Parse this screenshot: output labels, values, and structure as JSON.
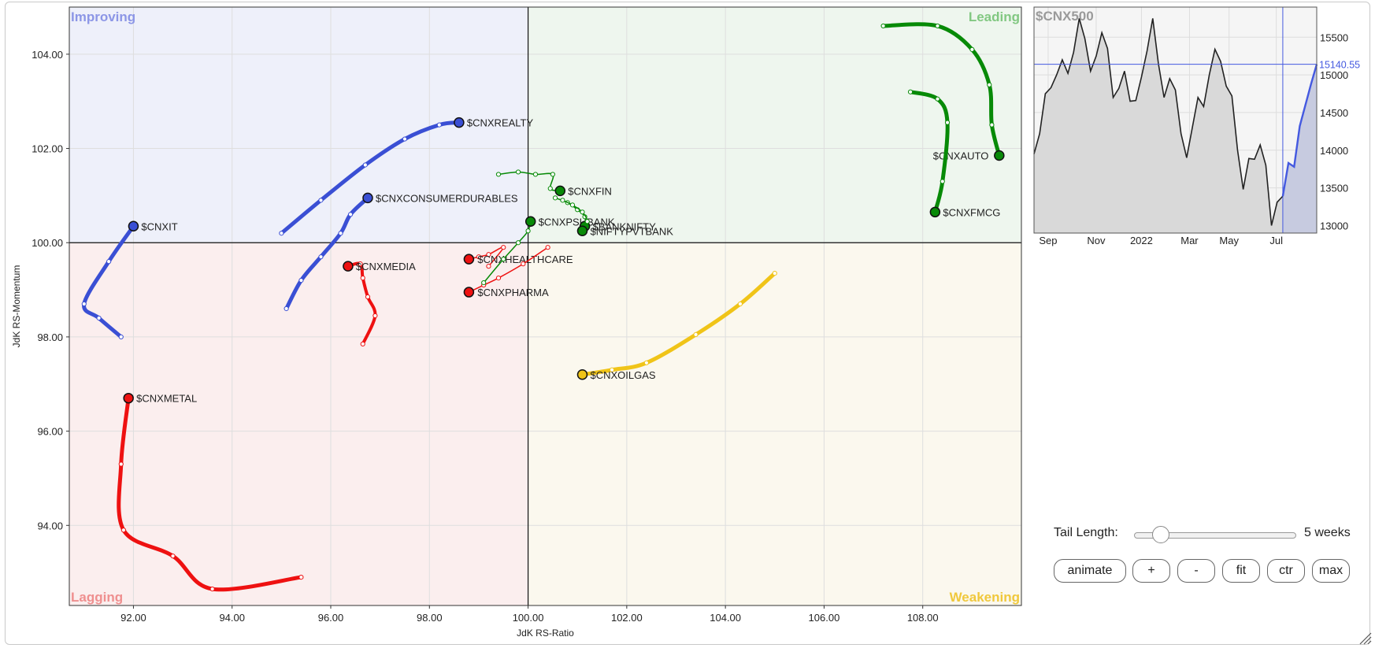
{
  "chart_data": [
    {
      "type": "scatter",
      "xlabel": "JdK RS-Ratio",
      "ylabel": "JdK RS-Momentum",
      "xlim": [
        90.7,
        110.0
      ],
      "ylim": [
        92.3,
        105.0
      ],
      "center": [
        100,
        100
      ],
      "x_ticks": [
        "92.00",
        "94.00",
        "96.00",
        "98.00",
        "100.00",
        "102.00",
        "104.00",
        "106.00",
        "108.00"
      ],
      "y_ticks": [
        "94.00",
        "96.00",
        "98.00",
        "100.00",
        "102.00",
        "104.00"
      ],
      "x_tick_values": [
        92,
        94,
        96,
        98,
        100,
        102,
        104,
        106,
        108
      ],
      "y_tick_values": [
        94,
        96,
        98,
        100,
        102,
        104
      ],
      "grid": true,
      "quadrants": [
        {
          "name": "Improving",
          "position": "top-left",
          "fill": "#eef0fa",
          "label_color": "#8c96e6"
        },
        {
          "name": "Leading",
          "position": "top-right",
          "fill": "#eef6ee",
          "label_color": "#82c882"
        },
        {
          "name": "Lagging",
          "position": "bottom-left",
          "fill": "#fbeeee",
          "label_color": "#ef8f8f"
        },
        {
          "name": "Weakening",
          "position": "bottom-right",
          "fill": "#fbf8ee",
          "label_color": "#f0c83c"
        }
      ],
      "series": [
        {
          "name": "$CNXREALTY",
          "color": "#3a4fd4",
          "width": 5,
          "points": [
            [
              95.0,
              100.2
            ],
            [
              95.8,
              100.9
            ],
            [
              96.7,
              101.65
            ],
            [
              97.5,
              102.2
            ],
            [
              98.2,
              102.5
            ],
            [
              98.6,
              102.55
            ]
          ]
        },
        {
          "name": "$CNXCONSUMERDURABLES",
          "color": "#3a4fd4",
          "width": 5,
          "points": [
            [
              95.1,
              98.6
            ],
            [
              95.4,
              99.2
            ],
            [
              95.8,
              99.7
            ],
            [
              96.2,
              100.2
            ],
            [
              96.4,
              100.6
            ],
            [
              96.75,
              100.95
            ]
          ]
        },
        {
          "name": "$CNXIT",
          "color": "#3a4fd4",
          "width": 5,
          "points": [
            [
              91.75,
              98.0
            ],
            [
              91.3,
              98.4
            ],
            [
              91.0,
              98.7
            ],
            [
              91.5,
              99.6
            ],
            [
              92.0,
              100.35
            ]
          ]
        },
        {
          "name": "$CNXMETAL",
          "color": "#ee1111",
          "width": 5,
          "points": [
            [
              95.4,
              92.9
            ],
            [
              93.6,
              92.65
            ],
            [
              92.8,
              93.35
            ],
            [
              91.8,
              93.9
            ],
            [
              91.75,
              95.3
            ],
            [
              91.9,
              96.7
            ]
          ]
        },
        {
          "name": "$CNXMEDIA",
          "color": "#ee1111",
          "width": 4,
          "points": [
            [
              96.65,
              97.85
            ],
            [
              96.9,
              98.45
            ],
            [
              96.75,
              98.85
            ],
            [
              96.65,
              99.25
            ],
            [
              96.6,
              99.55
            ],
            [
              96.35,
              99.5
            ]
          ]
        },
        {
          "name": "$CNXHEALTHCARE",
          "color": "#ee1111",
          "width": 1.5,
          "points": [
            [
              99.2,
              99.5
            ],
            [
              99.5,
              99.9
            ],
            [
              99.2,
              99.75
            ],
            [
              99.0,
              99.7
            ],
            [
              98.8,
              99.65
            ]
          ]
        },
        {
          "name": "$CNXPHARMA",
          "color": "#ee1111",
          "width": 1.5,
          "points": [
            [
              100.4,
              99.9
            ],
            [
              99.9,
              99.55
            ],
            [
              99.4,
              99.25
            ],
            [
              99.1,
              99.1
            ],
            [
              98.8,
              98.95
            ]
          ]
        },
        {
          "name": "$CNXOILGAS",
          "color": "#f0c418",
          "width": 5,
          "points": [
            [
              105.0,
              99.35
            ],
            [
              104.3,
              98.7
            ],
            [
              103.4,
              98.05
            ],
            [
              102.4,
              97.45
            ],
            [
              101.7,
              97.3
            ],
            [
              101.1,
              97.2
            ]
          ]
        },
        {
          "name": "$CNXAUTO",
          "color": "#078a07",
          "width": 5,
          "points": [
            [
              107.2,
              104.6
            ],
            [
              108.3,
              104.6
            ],
            [
              109.0,
              104.1
            ],
            [
              109.35,
              103.35
            ],
            [
              109.4,
              102.5
            ],
            [
              109.55,
              101.85
            ]
          ]
        },
        {
          "name": "$CNXFMCG",
          "color": "#078a07",
          "width": 5,
          "points": [
            [
              107.75,
              103.2
            ],
            [
              108.3,
              103.05
            ],
            [
              108.5,
              102.55
            ],
            [
              108.4,
              101.3
            ],
            [
              108.25,
              100.65
            ]
          ]
        },
        {
          "name": "$CNXFIN",
          "color": "#078a07",
          "width": 1.5,
          "points": [
            [
              99.4,
              101.45
            ],
            [
              99.8,
              101.5
            ],
            [
              100.15,
              101.45
            ],
            [
              100.5,
              101.45
            ],
            [
              100.45,
              101.15
            ],
            [
              100.65,
              101.1
            ]
          ]
        },
        {
          "name": "$CNXPSUBANK",
          "color": "#078a07",
          "width": 1.5,
          "points": [
            [
              99.1,
              99.15
            ],
            [
              99.5,
              99.65
            ],
            [
              99.8,
              100.0
            ],
            [
              100.0,
              100.25
            ],
            [
              100.05,
              100.45
            ]
          ]
        },
        {
          "name": "$BANKNIFTY",
          "color": "#078a07",
          "width": 1.5,
          "points": [
            [
              100.55,
              100.95
            ],
            [
              100.8,
              100.85
            ],
            [
              101.0,
              100.7
            ],
            [
              101.15,
              100.55
            ],
            [
              101.15,
              100.35
            ]
          ]
        },
        {
          "name": "$NIFTYPVTBANK",
          "color": "#078a07",
          "width": 1.5,
          "points": [
            [
              100.7,
              100.9
            ],
            [
              100.9,
              100.8
            ],
            [
              101.1,
              100.65
            ],
            [
              101.2,
              100.45
            ],
            [
              101.1,
              100.25
            ]
          ]
        }
      ],
      "labels": {
        "$CNXREALTY": "$CNXREALTY",
        "$CNXCONSUMERDURABLES": "$CNXCONSUMERDURABLES",
        "$CNXIT": "$CNXIT",
        "$CNXMETAL": "$CNXMETAL",
        "$CNXMEDIA": "$CNXMEDIA",
        "$CNXHEALTHCARE": "$CNXHEALTHCARE",
        "$CNXPHARMA": "$CNXPHARMA",
        "$CNXOILGAS": "$CNXOILGAS",
        "$CNXAUTO": "$CNXAUTO",
        "$CNXFMCG": "$CNXFMCG",
        "$CNXFIN": "$CNXFIN",
        "$CNXPSUBANK": "$CNXPSUBANK",
        "$BANKNIFTY": "$BANKNIFTY",
        "$NIFTYPVTBANK": "$NIFTYPVTBANK"
      }
    },
    {
      "type": "area",
      "title": "$CNX500",
      "x_ticks": [
        "Sep",
        "Nov",
        "2022",
        "Mar",
        "May",
        "Jul"
      ],
      "y_ticks": [
        "13000",
        "13500",
        "14000",
        "14500",
        "15000",
        "15500"
      ],
      "y_tick_values": [
        13000,
        13500,
        14000,
        14500,
        15000,
        15500
      ],
      "ylim": [
        12900,
        15900
      ],
      "current_value": "15140.55",
      "current_numeric": 15140.55,
      "fill": "#d9d9d9",
      "line_color": "#222222",
      "highlight_color": "#4459e0",
      "values": [
        13950,
        14220,
        14750,
        14830,
        15000,
        15200,
        15020,
        15300,
        15750,
        15480,
        15050,
        15250,
        15560,
        15350,
        14700,
        14820,
        15050,
        14650,
        14660,
        14970,
        15320,
        15750,
        15150,
        14700,
        14950,
        14800,
        14220,
        13900,
        14300,
        14700,
        14580,
        15000,
        15340,
        15180,
        14850,
        14720,
        14000,
        13480,
        13890,
        13880,
        14070,
        13800,
        13000,
        13310,
        13390,
        13830,
        13780,
        14320,
        14600,
        14880,
        15140.55
      ],
      "highlight_from_index": 44
    }
  ],
  "controls": {
    "tail_label": "Tail Length:",
    "tail_value": "5 weeks",
    "buttons": [
      "animate",
      "+",
      "-",
      "fit",
      "ctr",
      "max"
    ]
  }
}
